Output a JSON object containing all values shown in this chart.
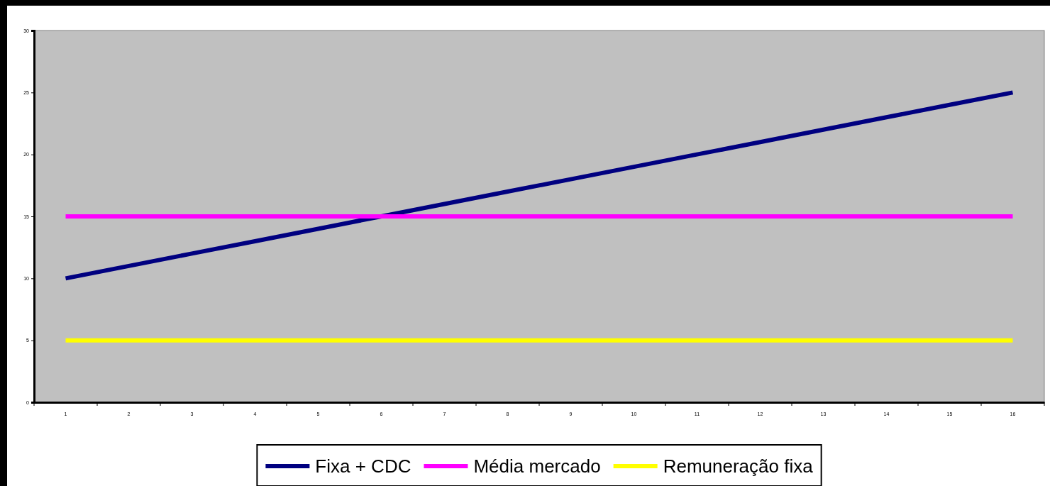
{
  "chart_data": {
    "type": "line",
    "categories": [
      "1",
      "2",
      "3",
      "4",
      "5",
      "6",
      "7",
      "8",
      "9",
      "10",
      "11",
      "12",
      "13",
      "14",
      "15",
      "16"
    ],
    "series": [
      {
        "name": "Fixa + CDC",
        "color": "#000080",
        "values": [
          10,
          11,
          12,
          13,
          14,
          15,
          16,
          17,
          18,
          19,
          20,
          21,
          22,
          23,
          24,
          25
        ]
      },
      {
        "name": "Média mercado",
        "color": "#ff00ff",
        "values": [
          15,
          15,
          15,
          15,
          15,
          15,
          15,
          15,
          15,
          15,
          15,
          15,
          15,
          15,
          15,
          15
        ]
      },
      {
        "name": "Remuneração fixa",
        "color": "#ffff00",
        "values": [
          5,
          5,
          5,
          5,
          5,
          5,
          5,
          5,
          5,
          5,
          5,
          5,
          5,
          5,
          5,
          5
        ]
      }
    ],
    "ylim": [
      0,
      30
    ],
    "yticks": [
      0,
      5,
      10,
      15,
      20,
      25,
      30
    ],
    "grid": false,
    "legend": "bottom",
    "marker": "none",
    "line_style": "solid"
  }
}
